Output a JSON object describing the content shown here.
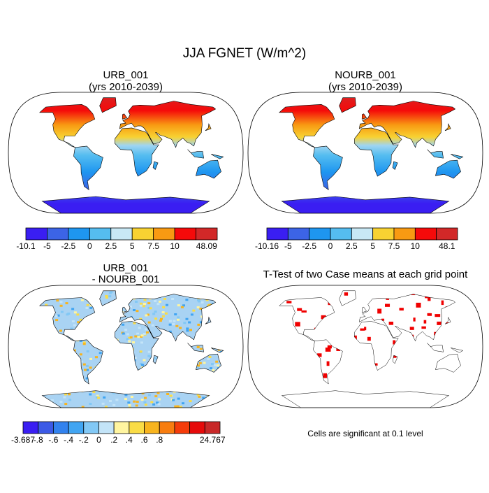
{
  "title": "JJA FGNET (W/m^2)",
  "panels": [
    {
      "title": [
        "URB_001",
        "(yrs 2010-2039)"
      ],
      "colorbar": {
        "labels": [
          "-10.1",
          "-5",
          "-2.5",
          "0",
          "2.5",
          "5",
          "7.5",
          "10",
          "48.09"
        ],
        "colors": [
          "#3a1ef2",
          "#3c64e6",
          "#1e96f0",
          "#55bdf0",
          "#c8e8f5",
          "#f8d232",
          "#f89a12",
          "#f50a0a",
          "#d22828"
        ]
      }
    },
    {
      "title": [
        "NOURB_001",
        "(yrs 2010-2039)"
      ],
      "colorbar": {
        "labels": [
          "-10.16",
          "-5",
          "-2.5",
          "0",
          "2.5",
          "5",
          "7.5",
          "10",
          "48.1"
        ],
        "colors": [
          "#3a1ef2",
          "#3c64e6",
          "#1e96f0",
          "#55bdf0",
          "#c8e8f5",
          "#f8d232",
          "#f89a12",
          "#f50a0a",
          "#d22828"
        ]
      }
    },
    {
      "title": [
        "URB_001",
        "- NOURB_001"
      ],
      "colorbar": {
        "labels": [
          "-3.687",
          "-.8",
          "-.6",
          "-.4",
          "-.2",
          "0",
          ".2",
          ".4",
          ".6",
          ".8",
          "24.767"
        ],
        "colors": [
          "#3a1ef2",
          "#3c5ae6",
          "#3282ee",
          "#41a5f2",
          "#82c8f5",
          "#c3e4f8",
          "#fff5a0",
          "#fadc46",
          "#f8b41e",
          "#f87d0f",
          "#f53c0a",
          "#e60a0a",
          "#c82828"
        ]
      }
    },
    {
      "title": [
        "T-Test of two Case means at each grid point"
      ],
      "note": "Cells are significant at 0.1 level"
    }
  ]
}
